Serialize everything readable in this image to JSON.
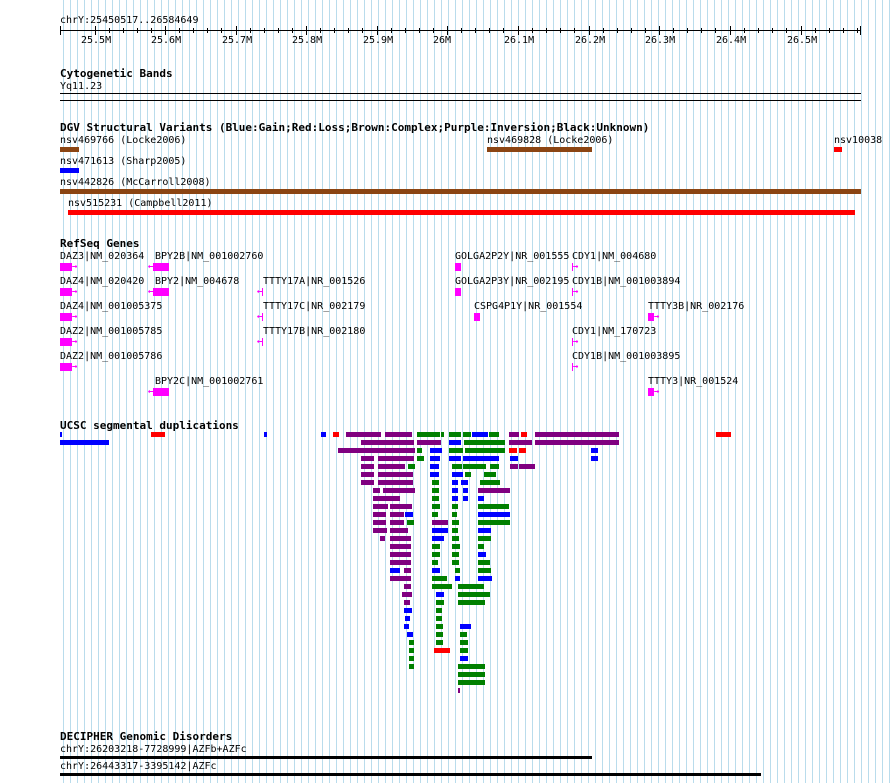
{
  "ruler": {
    "position_text": "chrY:25450517..26584649",
    "ticks": [
      "25.5M",
      "25.6M",
      "25.7M",
      "25.8M",
      "25.9M",
      "26M",
      "26.1M",
      "26.2M",
      "26.3M",
      "26.4M",
      "26.5M"
    ]
  },
  "tracks": {
    "cytoband": {
      "title": "Cytogenetic Bands",
      "band": "Yq11.23"
    },
    "dgv": {
      "title": "DGV Structural Variants (Blue:Gain;Red:Loss;Brown:Complex;Purple:Inversion;Black:Unknown)",
      "items": [
        {
          "label": "nsv469766 (Locke2006)",
          "color": "#8b4513"
        },
        {
          "label": "nsv469828 (Locke2006)",
          "color": "#8b4513"
        },
        {
          "label": "nsv10038",
          "color": "#ff0000"
        },
        {
          "label": "nsv471613 (Sharp2005)",
          "color": "#0000ff"
        },
        {
          "label": "nsv442826 (McCarroll2008)",
          "color": "#8b4513"
        },
        {
          "label": "nsv515231 (Campbell2011)",
          "color": "#ff0000"
        }
      ]
    },
    "refseq": {
      "title": "RefSeq Genes",
      "genes": [
        "DAZ3|NM_020364",
        "BPY2B|NM_001002760",
        "GOLGA2P2Y|NR_001555",
        "CDY1|NM_004680",
        "DAZ4|NM_020420",
        "BPY2|NM_004678",
        "TTTY17A|NR_001526",
        "GOLGA2P3Y|NR_002195",
        "CDY1B|NM_001003894",
        "DAZ4|NM_001005375",
        "TTTY17C|NR_002179",
        "CSPG4P1Y|NR_001554",
        "TTTY3B|NR_002176",
        "DAZ2|NM_001005785",
        "TTTY17B|NR_002180",
        "CDY1|NM_170723",
        "DAZ2|NM_001005786",
        "CDY1B|NM_001003895",
        "BPY2C|NM_001002761",
        "TTTY3|NR_001524"
      ],
      "color": "#ff00ff"
    },
    "segdups": {
      "title": "UCSC segmental duplications",
      "colors": {
        "red": "#ff0000",
        "blue": "#0000ff",
        "green": "#008000",
        "purple": "#800080"
      }
    },
    "decipher": {
      "title": "DECIPHER Genomic Disorders",
      "items": [
        "chrY:26203218-7728999|AZFb+AZFc",
        "chrY:26443317-3395142|AZFc"
      ]
    }
  }
}
